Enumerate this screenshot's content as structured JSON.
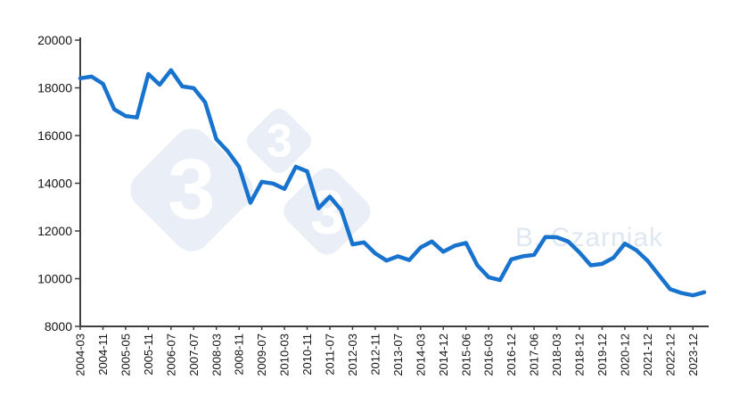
{
  "watermark": {
    "logo_digit": "3",
    "author": "B. Czarniak",
    "diamond_color": "#e9eef7",
    "digit_color": "#ffffff",
    "author_color": "#dfe7f1"
  },
  "chart_data": {
    "type": "line",
    "title": "",
    "xlabel": "",
    "ylabel": "",
    "grid": false,
    "legend": false,
    "series_color": "#1873ce",
    "axis_color": "#3f3f3f",
    "label_color": "#141414",
    "y_axis": {
      "min": 8000,
      "max": 20000,
      "ticks": [
        20000,
        18000,
        16000,
        14000,
        12000,
        10000,
        8000
      ]
    },
    "x_tick_labels": [
      "2004-03",
      "2004-11",
      "2005-05",
      "2005-11",
      "2006-07",
      "2007-07",
      "2008-03",
      "2008-11",
      "2009-07",
      "2010-03",
      "2010-11",
      "2011-07",
      "2012-03",
      "2012-11",
      "2013-07",
      "2014-03",
      "2014-12",
      "2015-06",
      "2016-03",
      "2016-12",
      "2017-06",
      "2018-03",
      "2018-12",
      "2019-12",
      "2020-12",
      "2021-12",
      "2022-12",
      "2023-12"
    ],
    "label_every_n_points": 2,
    "values": [
      18400,
      18470,
      18170,
      17100,
      16820,
      16760,
      18580,
      18130,
      18740,
      18060,
      17990,
      17400,
      15850,
      15340,
      14690,
      13180,
      14060,
      13990,
      13760,
      14690,
      14500,
      12950,
      13440,
      12880,
      11440,
      11520,
      11060,
      10760,
      10940,
      10780,
      11310,
      11560,
      11130,
      11380,
      11500,
      10560,
      10060,
      9940,
      10810,
      10940,
      11000,
      11750,
      11740,
      11560,
      11100,
      10560,
      10620,
      10880,
      11470,
      11200,
      10750,
      10150,
      9560,
      9400,
      9300,
      9430
    ]
  }
}
